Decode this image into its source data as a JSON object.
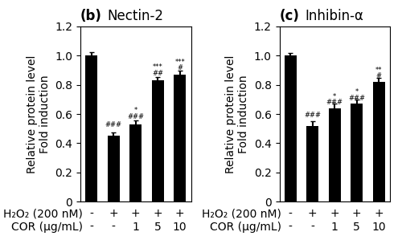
{
  "chart_data": [
    {
      "type": "bar",
      "panel_label": "(b)",
      "title": "Nectin-2",
      "ylabel": "Relative protein level\nFold induction",
      "categories": [
        "-\n-",
        "+\n-",
        "+\n1",
        "+\n5",
        "+\n10"
      ],
      "row_labels": [
        "H₂O₂ (200 nM)",
        "COR (μg/mL)"
      ],
      "values": [
        1.0,
        0.45,
        0.53,
        0.83,
        0.87
      ],
      "errors": [
        0.025,
        0.025,
        0.025,
        0.025,
        0.025
      ],
      "color": "#000000",
      "ylim": [
        0,
        1.2
      ],
      "yticks": [
        0,
        0.2,
        0.4,
        0.6,
        0.8,
        {
          "value": 1,
          "label": "1.0"
        },
        1.2
      ],
      "grid": false,
      "annotations": [
        {
          "text": "###",
          "category": "+\n-",
          "y": 0.5
        },
        {
          "text": "*",
          "category": "+\n1",
          "y": 0.6
        },
        {
          "text": "###",
          "category": "+\n1",
          "y": 0.555
        },
        {
          "text": "***",
          "category": "+\n5",
          "y": 0.895
        },
        {
          "text": "##",
          "category": "+\n5",
          "y": 0.855
        },
        {
          "text": "***",
          "category": "+\n10",
          "y": 0.93
        },
        {
          "text": "#",
          "category": "+\n10",
          "y": 0.89
        }
      ]
    },
    {
      "type": "bar",
      "panel_label": "(c)",
      "title": "Inhibin-α",
      "ylabel": "Relative protein level\nFold induction",
      "categories": [
        "-\n-",
        "+\n-",
        "+\n1",
        "+\n5",
        "+\n10"
      ],
      "row_labels": [
        "H₂O₂ (200 nM)",
        "COR (μg/mL)"
      ],
      "values": [
        1.0,
        0.52,
        0.64,
        0.67,
        0.82
      ],
      "errors": [
        0.02,
        0.03,
        0.03,
        0.03,
        0.03
      ],
      "color": "#000000",
      "ylim": [
        0,
        1.2
      ],
      "yticks": [
        0,
        0.2,
        0.4,
        0.6,
        0.8,
        {
          "value": 1,
          "label": "1.0"
        },
        1.2
      ],
      "grid": false,
      "annotations": [
        {
          "text": "###",
          "category": "+\n-",
          "y": 0.565
        },
        {
          "text": "*",
          "category": "+\n1",
          "y": 0.695
        },
        {
          "text": "###",
          "category": "+\n1",
          "y": 0.655
        },
        {
          "text": "*",
          "category": "+\n5",
          "y": 0.725
        },
        {
          "text": "###",
          "category": "+\n5",
          "y": 0.685
        },
        {
          "text": "**",
          "category": "+\n10",
          "y": 0.875
        },
        {
          "text": "#",
          "category": "+\n10",
          "y": 0.835
        }
      ]
    }
  ]
}
